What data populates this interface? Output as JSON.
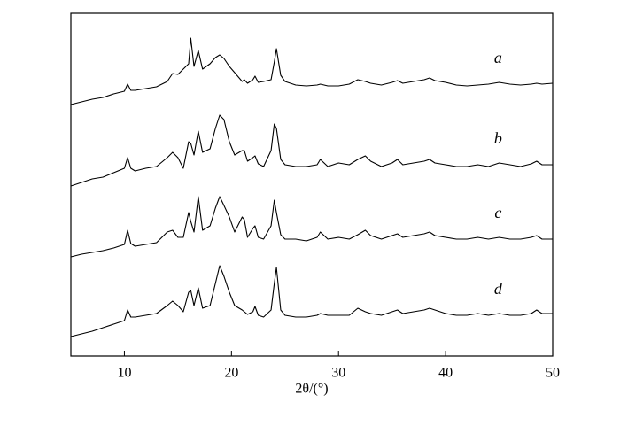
{
  "chart_data": {
    "type": "line",
    "x_label": "2θ/(°)",
    "x": [
      5,
      6,
      7,
      8,
      9,
      10,
      10.3,
      10.6,
      11,
      12,
      13,
      14,
      14.5,
      15,
      15.5,
      16,
      16.2,
      16.5,
      16.9,
      17.3,
      18,
      18.5,
      18.9,
      19.3,
      19.8,
      20.3,
      21,
      21.2,
      21.5,
      22,
      22.2,
      22.5,
      23,
      23.7,
      24,
      24.2,
      24.6,
      25,
      26,
      27,
      28,
      28.3,
      29,
      30,
      31,
      31.8,
      32.5,
      33,
      34,
      35,
      35.5,
      36,
      37,
      38,
      38.5,
      39,
      40,
      41,
      42,
      43,
      44,
      45,
      46,
      47,
      48,
      48.5,
      49,
      50
    ],
    "xlim": [
      5,
      50
    ],
    "xticks": [
      10,
      20,
      30,
      40,
      50
    ],
    "ylim": [
      0,
      387
    ],
    "series": [
      {
        "name": "a",
        "color": "#000000",
        "values": [
          284,
          287,
          290,
          292,
          296,
          299,
          307,
          300,
          300,
          302,
          304,
          310,
          319,
          318,
          324,
          330,
          359,
          327,
          345,
          324,
          330,
          337,
          340,
          336,
          327,
          320,
          310,
          312,
          308,
          312,
          316,
          309,
          310,
          312,
          332,
          347,
          317,
          310,
          306,
          305,
          306,
          307,
          305,
          305,
          307,
          312,
          310,
          308,
          306,
          309,
          311,
          308,
          310,
          312,
          314,
          311,
          309,
          306,
          305,
          306,
          307,
          309,
          307,
          306,
          307,
          308,
          307,
          308
        ]
      },
      {
        "name": "b",
        "color": "#000000",
        "values": [
          192,
          196,
          200,
          202,
          207,
          212,
          224,
          212,
          209,
          212,
          214,
          224,
          230,
          224,
          212,
          242,
          240,
          227,
          254,
          230,
          234,
          257,
          272,
          267,
          242,
          227,
          232,
          232,
          220,
          224,
          226,
          217,
          214,
          232,
          262,
          257,
          222,
          216,
          214,
          214,
          216,
          222,
          214,
          218,
          216,
          222,
          226,
          220,
          214,
          218,
          222,
          216,
          218,
          220,
          222,
          218,
          216,
          214,
          214,
          216,
          214,
          218,
          216,
          214,
          217,
          220,
          216,
          216
        ]
      },
      {
        "name": "c",
        "color": "#000000",
        "values": [
          112,
          115,
          117,
          119,
          122,
          126,
          142,
          127,
          124,
          126,
          128,
          140,
          142,
          134,
          134,
          162,
          152,
          140,
          180,
          142,
          147,
          167,
          180,
          170,
          157,
          140,
          157,
          154,
          134,
          144,
          147,
          134,
          132,
          147,
          176,
          162,
          137,
          132,
          132,
          130,
          134,
          140,
          132,
          134,
          132,
          137,
          142,
          136,
          132,
          136,
          138,
          134,
          136,
          138,
          140,
          136,
          134,
          132,
          132,
          134,
          132,
          134,
          132,
          132,
          134,
          136,
          132,
          132
        ]
      },
      {
        "name": "d",
        "color": "#000000",
        "values": [
          22,
          25,
          28,
          32,
          36,
          40,
          52,
          44,
          44,
          46,
          48,
          57,
          62,
          57,
          50,
          72,
          74,
          57,
          77,
          54,
          57,
          82,
          102,
          90,
          72,
          57,
          52,
          50,
          47,
          50,
          56,
          46,
          44,
          52,
          82,
          100,
          52,
          46,
          44,
          44,
          46,
          48,
          46,
          46,
          46,
          54,
          50,
          48,
          46,
          50,
          52,
          48,
          50,
          52,
          54,
          52,
          48,
          46,
          46,
          48,
          46,
          48,
          46,
          46,
          48,
          52,
          48,
          48
        ]
      }
    ]
  }
}
